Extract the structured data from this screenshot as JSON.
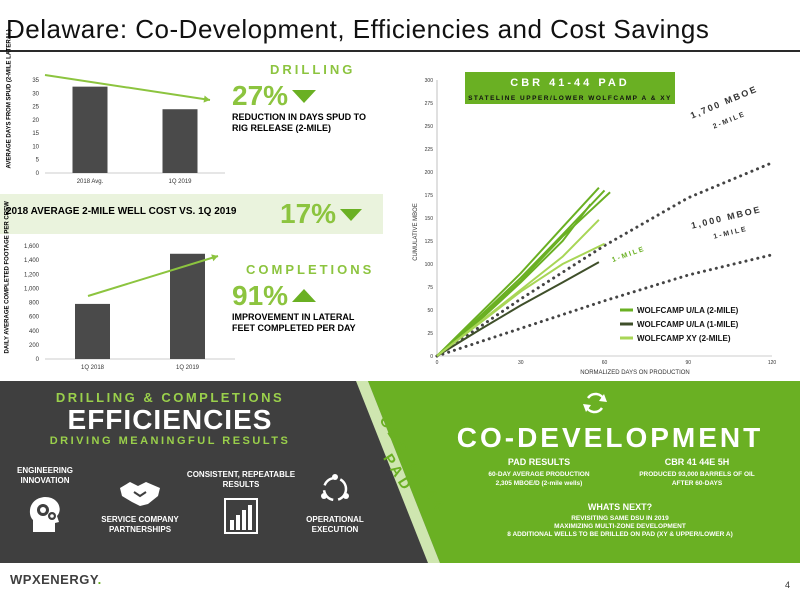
{
  "title": "Delaware: Co-Development, Efficiencies and Cost Savings",
  "drilling": {
    "label": "DRILLING",
    "chart": {
      "ylabel": "AVERAGE DAYS FROM SPUD (2-MILE LATERAL)",
      "ticks": [
        "35",
        "30",
        "25",
        "20",
        "15",
        "10",
        "5",
        "0"
      ],
      "categories": [
        "2018 Avg.",
        "1Q 2019"
      ],
      "values": [
        32.5,
        24
      ]
    },
    "stat_value": "27%",
    "stat_desc": "REDUCTION IN DAYS SPUD TO RIG RELEASE (2-MILE)"
  },
  "well_cost": {
    "text": "2018 AVERAGE 2-MILE WELL COST VS. 1Q 2019",
    "value": "17%"
  },
  "completions": {
    "label": "COMPLETIONS",
    "chart": {
      "ylabel": "DAILY AVERAGE COMPLETED FOOTAGE PER CREW",
      "ticks": [
        "1,600",
        "1,400",
        "1,200",
        "1,000",
        "800",
        "600",
        "400",
        "200",
        "0"
      ],
      "categories": [
        "1Q 2018",
        "1Q 2019"
      ],
      "values": [
        780,
        1490
      ]
    },
    "stat_value": "91%",
    "stat_desc": "IMPROVEMENT IN LATERAL FEET COMPLETED PER DAY"
  },
  "chart_data": {
    "type": "line",
    "title": "CBR 41-44 PAD",
    "subtitle": "STATELINE UPPER/LOWER WOLFCAMP A & XY",
    "xlabel": "NORMALIZED DAYS ON PRODUCTION",
    "ylabel": "CUMULATIVE MBOE",
    "xlim": [
      0,
      120
    ],
    "ylim": [
      0,
      300
    ],
    "xticks": [
      "0",
      "30",
      "60",
      "90",
      "120"
    ],
    "yticks": [
      "300",
      "275",
      "250",
      "225",
      "200",
      "175",
      "150",
      "125",
      "100",
      "75",
      "50",
      "25",
      "0"
    ],
    "legend_position": "bottom-right",
    "type_curves": [
      {
        "label": "1,700 MBOE",
        "sublabel": "2-MILE",
        "points": [
          [
            0,
            0
          ],
          [
            30,
            62
          ],
          [
            60,
            120
          ],
          [
            90,
            172
          ],
          [
            120,
            210
          ]
        ]
      },
      {
        "label": "1,000 MBOE",
        "sublabel": "1-MILE",
        "points": [
          [
            0,
            0
          ],
          [
            30,
            30
          ],
          [
            60,
            60
          ],
          [
            90,
            88
          ],
          [
            120,
            110
          ]
        ]
      }
    ],
    "series": [
      {
        "name": "WOLFCAMP U/LA (2-MILE)",
        "color": "#6ab023",
        "lines": [
          [
            [
              0,
              0
            ],
            [
              15,
              45
            ],
            [
              30,
              90
            ],
            [
              45,
              140
            ],
            [
              58,
              183
            ]
          ],
          [
            [
              0,
              0
            ],
            [
              15,
              42
            ],
            [
              30,
              85
            ],
            [
              45,
              132
            ],
            [
              60,
              180
            ]
          ],
          [
            [
              0,
              0
            ],
            [
              15,
              38
            ],
            [
              30,
              80
            ],
            [
              45,
              125
            ],
            [
              55,
              165
            ]
          ],
          [
            [
              0,
              0
            ],
            [
              15,
              40
            ],
            [
              30,
              82
            ],
            [
              45,
              130
            ],
            [
              62,
              178
            ]
          ]
        ]
      },
      {
        "name": "WOLFCAMP U/LA (1-MILE)",
        "color": "#3f4f2a",
        "lines": [
          [
            [
              0,
              0
            ],
            [
              15,
              28
            ],
            [
              30,
              55
            ],
            [
              45,
              80
            ],
            [
              58,
              102
            ]
          ]
        ]
      },
      {
        "name": "WOLFCAMP XY (2-MILE)",
        "color": "#a8d656",
        "lines": [
          [
            [
              0,
              0
            ],
            [
              15,
              36
            ],
            [
              30,
              72
            ],
            [
              45,
              108
            ],
            [
              58,
              148
            ]
          ],
          [
            [
              0,
              0
            ],
            [
              15,
              35
            ],
            [
              30,
              70
            ],
            [
              45,
              100
            ],
            [
              60,
              122
            ]
          ]
        ]
      }
    ],
    "curve_label_1mile": "1-MILE"
  },
  "efficiencies": {
    "line1": "DRILLING & COMPLETIONS",
    "line2": "EFFICIENCIES",
    "line3": "DRIVING MEANINGFUL RESULTS",
    "items": [
      {
        "label": "ENGINEERING INNOVATION",
        "icon": "gear-head-icon"
      },
      {
        "label": "SERVICE COMPANY PARTNERSHIPS",
        "icon": "handshake-icon"
      },
      {
        "label": "CONSISTENT, REPEATABLE RESULTS",
        "icon": "bar-chart-icon"
      },
      {
        "label": "OPERATIONAL EXECUTION",
        "icon": "cycle-icon"
      }
    ]
  },
  "diagonal_label": "CBR 41-44 PAD",
  "codev": {
    "heading": "CO-DEVELOPMENT",
    "pad_title": "PAD RESULTS",
    "pad_text_1": "60-DAY AVERAGE PRODUCTION",
    "pad_text_2": "2,305 MBOE/D (2-mile wells)",
    "well_title": "CBR 41 44E 5H",
    "well_text_1": "PRODUCED 93,000 BARRELS OF OIL",
    "well_text_2": "AFTER 60-DAYS",
    "next_title": "WHATS NEXT?",
    "next_1": "REVISITING SAME DSU IN 2019",
    "next_2": "MAXIMIZING MULTI-ZONE DEVELOPMENT",
    "next_3": "8 ADDITIONAL WELLS TO BE DRILLED ON PAD (XY & UPPER/LOWER A)"
  },
  "footer": {
    "logo_a": "WPX",
    "logo_b": "ENERGY",
    "logo_suffix": ".",
    "page": "4"
  }
}
